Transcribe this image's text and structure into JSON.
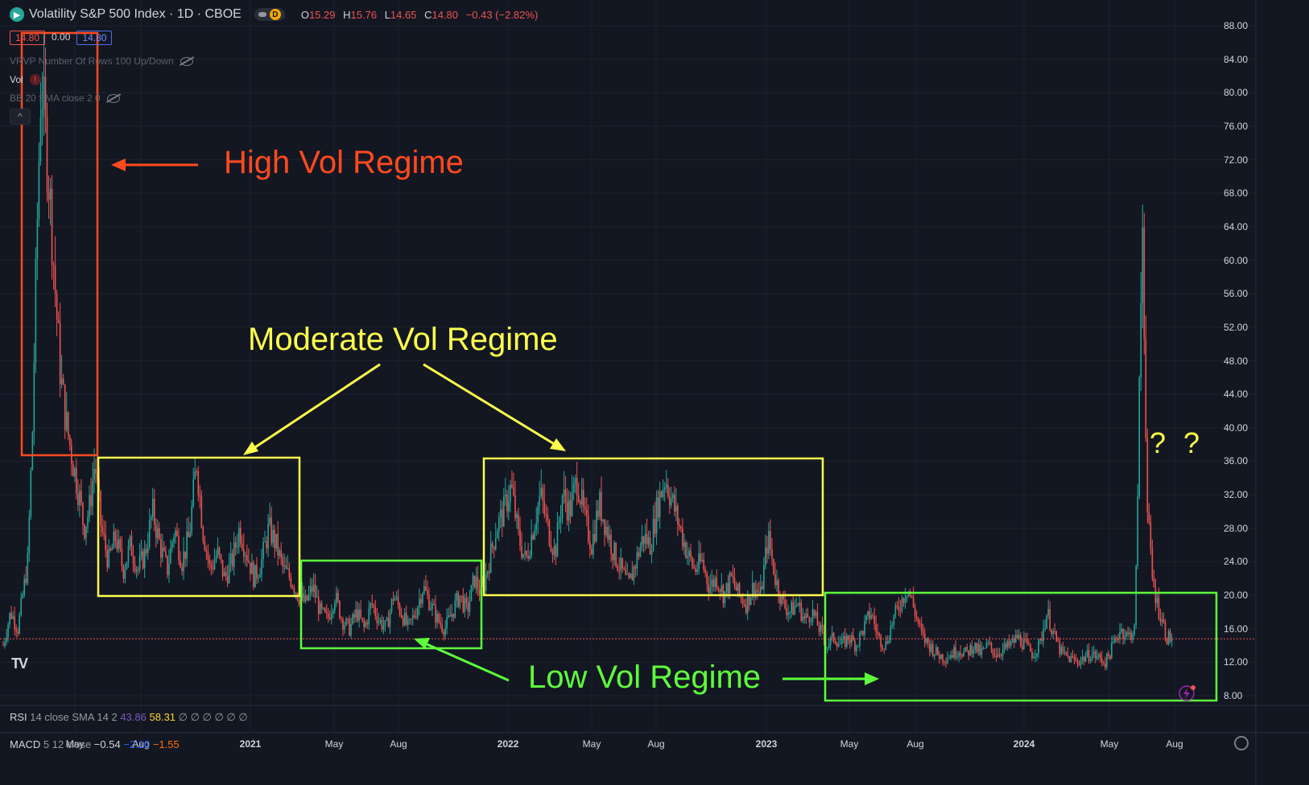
{
  "header": {
    "logo_icon": "tradingview-symbol-logo",
    "title": "Volatility S&P 500 Index · 1D · CBOE",
    "toggle_badge": "D",
    "ohlc": {
      "o_label": "O",
      "o_value": "15.29",
      "h_label": "H",
      "h_value": "15.76",
      "l_label": "L",
      "l_value": "14.65",
      "c_label": "C",
      "c_value": "14.80",
      "change": "−0.43 (−2.82%)"
    }
  },
  "price_tags": {
    "bid": "14.80",
    "spread": "0.00",
    "ask": "14.80"
  },
  "indicators": {
    "vrvp": "VRVP Number Of Rows 100 Up/Down",
    "vol": "Vol",
    "bb": "BB 20 SMA close 2 0",
    "collapse_glyph": "^"
  },
  "panes": {
    "rsi_label": "RSI",
    "rsi_params": "14 close SMA 14 2",
    "rsi_value1": "43.86",
    "rsi_value2": "58.31",
    "rsi_na": "∅ ∅ ∅ ∅ ∅ ∅",
    "macd_label": "MACD",
    "macd_params": "5 12 close",
    "macd_value1": "−0.54",
    "macd_value2": "−2.10",
    "macd_value3": "−1.55"
  },
  "annotations": {
    "high": "High Vol Regime",
    "moderate": "Moderate Vol Regime",
    "low": "Low Vol Regime",
    "question": "? ?"
  },
  "colors": {
    "background": "#131722",
    "up": "#26a69a",
    "down": "#ef5350",
    "high_regime": "#ff4a1f",
    "moderate_regime": "#ffff4d",
    "low_regime": "#5dff3d"
  },
  "chart_data": {
    "type": "candlestick",
    "symbol": "Volatility S&P 500 Index",
    "interval": "1D",
    "exchange": "CBOE",
    "y_ticks": [
      "88.00",
      "84.00",
      "80.00",
      "76.00",
      "72.00",
      "68.00",
      "64.00",
      "60.00",
      "56.00",
      "52.00",
      "48.00",
      "44.00",
      "40.00",
      "36.00",
      "32.00",
      "28.00",
      "24.00",
      "20.00",
      "16.00",
      "12.00",
      "8.00"
    ],
    "x_ticks": [
      {
        "label": "May",
        "year": false
      },
      {
        "label": "Aug",
        "year": false
      },
      {
        "label": "2021",
        "year": true
      },
      {
        "label": "May",
        "year": false
      },
      {
        "label": "Aug",
        "year": false
      },
      {
        "label": "2022",
        "year": true
      },
      {
        "label": "May",
        "year": false
      },
      {
        "label": "Aug",
        "year": false
      },
      {
        "label": "2023",
        "year": true
      },
      {
        "label": "May",
        "year": false
      },
      {
        "label": "Aug",
        "year": false
      },
      {
        "label": "2024",
        "year": true
      },
      {
        "label": "May",
        "year": false
      },
      {
        "label": "Aug",
        "year": false
      }
    ],
    "ylim": [
      8,
      88
    ],
    "last_price": 14.8,
    "close_series": [
      {
        "t": 0.0,
        "v": 14
      },
      {
        "t": 0.006,
        "v": 18
      },
      {
        "t": 0.012,
        "v": 16
      },
      {
        "t": 0.02,
        "v": 24
      },
      {
        "t": 0.024,
        "v": 40
      },
      {
        "t": 0.027,
        "v": 60
      },
      {
        "t": 0.031,
        "v": 82
      },
      {
        "t": 0.034,
        "v": 76
      },
      {
        "t": 0.038,
        "v": 68
      },
      {
        "t": 0.043,
        "v": 55
      },
      {
        "t": 0.047,
        "v": 46
      },
      {
        "t": 0.052,
        "v": 40
      },
      {
        "t": 0.058,
        "v": 35
      },
      {
        "t": 0.062,
        "v": 32
      },
      {
        "t": 0.066,
        "v": 28
      },
      {
        "t": 0.07,
        "v": 30
      },
      {
        "t": 0.075,
        "v": 36
      },
      {
        "t": 0.08,
        "v": 28
      },
      {
        "t": 0.086,
        "v": 24
      },
      {
        "t": 0.092,
        "v": 27
      },
      {
        "t": 0.098,
        "v": 23
      },
      {
        "t": 0.104,
        "v": 26
      },
      {
        "t": 0.11,
        "v": 23
      },
      {
        "t": 0.116,
        "v": 25
      },
      {
        "t": 0.122,
        "v": 30
      },
      {
        "t": 0.128,
        "v": 26
      },
      {
        "t": 0.134,
        "v": 23
      },
      {
        "t": 0.14,
        "v": 28
      },
      {
        "t": 0.146,
        "v": 24
      },
      {
        "t": 0.152,
        "v": 27
      },
      {
        "t": 0.158,
        "v": 36
      },
      {
        "t": 0.163,
        "v": 28
      },
      {
        "t": 0.169,
        "v": 23
      },
      {
        "t": 0.175,
        "v": 25
      },
      {
        "t": 0.181,
        "v": 22
      },
      {
        "t": 0.187,
        "v": 24
      },
      {
        "t": 0.193,
        "v": 28
      },
      {
        "t": 0.199,
        "v": 25
      },
      {
        "t": 0.205,
        "v": 22
      },
      {
        "t": 0.211,
        "v": 24
      },
      {
        "t": 0.217,
        "v": 28
      },
      {
        "t": 0.223,
        "v": 26
      },
      {
        "t": 0.229,
        "v": 23
      },
      {
        "t": 0.235,
        "v": 22
      },
      {
        "t": 0.241,
        "v": 20
      },
      {
        "t": 0.247,
        "v": 19
      },
      {
        "t": 0.253,
        "v": 21
      },
      {
        "t": 0.259,
        "v": 18
      },
      {
        "t": 0.265,
        "v": 17
      },
      {
        "t": 0.271,
        "v": 20
      },
      {
        "t": 0.277,
        "v": 17
      },
      {
        "t": 0.283,
        "v": 16
      },
      {
        "t": 0.289,
        "v": 18
      },
      {
        "t": 0.295,
        "v": 16
      },
      {
        "t": 0.301,
        "v": 19
      },
      {
        "t": 0.307,
        "v": 17
      },
      {
        "t": 0.313,
        "v": 16
      },
      {
        "t": 0.319,
        "v": 20
      },
      {
        "t": 0.325,
        "v": 18
      },
      {
        "t": 0.331,
        "v": 16
      },
      {
        "t": 0.337,
        "v": 18
      },
      {
        "t": 0.343,
        "v": 21
      },
      {
        "t": 0.349,
        "v": 19
      },
      {
        "t": 0.355,
        "v": 17
      },
      {
        "t": 0.361,
        "v": 16
      },
      {
        "t": 0.367,
        "v": 18
      },
      {
        "t": 0.373,
        "v": 20
      },
      {
        "t": 0.379,
        "v": 18
      },
      {
        "t": 0.385,
        "v": 22
      },
      {
        "t": 0.391,
        "v": 20
      },
      {
        "t": 0.397,
        "v": 24
      },
      {
        "t": 0.403,
        "v": 28
      },
      {
        "t": 0.409,
        "v": 30
      },
      {
        "t": 0.415,
        "v": 33
      },
      {
        "t": 0.421,
        "v": 27
      },
      {
        "t": 0.427,
        "v": 24
      },
      {
        "t": 0.433,
        "v": 28
      },
      {
        "t": 0.439,
        "v": 32
      },
      {
        "t": 0.445,
        "v": 28
      },
      {
        "t": 0.451,
        "v": 25
      },
      {
        "t": 0.457,
        "v": 32
      },
      {
        "t": 0.463,
        "v": 30
      },
      {
        "t": 0.469,
        "v": 34
      },
      {
        "t": 0.475,
        "v": 29
      },
      {
        "t": 0.481,
        "v": 26
      },
      {
        "t": 0.487,
        "v": 31
      },
      {
        "t": 0.493,
        "v": 28
      },
      {
        "t": 0.499,
        "v": 25
      },
      {
        "t": 0.505,
        "v": 23
      },
      {
        "t": 0.511,
        "v": 21
      },
      {
        "t": 0.517,
        "v": 24
      },
      {
        "t": 0.523,
        "v": 27
      },
      {
        "t": 0.529,
        "v": 26
      },
      {
        "t": 0.535,
        "v": 31
      },
      {
        "t": 0.541,
        "v": 34
      },
      {
        "t": 0.547,
        "v": 31
      },
      {
        "t": 0.553,
        "v": 28
      },
      {
        "t": 0.559,
        "v": 25
      },
      {
        "t": 0.565,
        "v": 23
      },
      {
        "t": 0.571,
        "v": 24
      },
      {
        "t": 0.577,
        "v": 21
      },
      {
        "t": 0.583,
        "v": 22
      },
      {
        "t": 0.589,
        "v": 20
      },
      {
        "t": 0.595,
        "v": 22
      },
      {
        "t": 0.601,
        "v": 20
      },
      {
        "t": 0.607,
        "v": 19
      },
      {
        "t": 0.613,
        "v": 21
      },
      {
        "t": 0.619,
        "v": 20
      },
      {
        "t": 0.625,
        "v": 27
      },
      {
        "t": 0.631,
        "v": 22
      },
      {
        "t": 0.637,
        "v": 19
      },
      {
        "t": 0.643,
        "v": 18
      },
      {
        "t": 0.649,
        "v": 19
      },
      {
        "t": 0.655,
        "v": 17
      },
      {
        "t": 0.661,
        "v": 18
      },
      {
        "t": 0.667,
        "v": 16
      },
      {
        "t": 0.673,
        "v": 14
      },
      {
        "t": 0.679,
        "v": 15
      },
      {
        "t": 0.685,
        "v": 14
      },
      {
        "t": 0.691,
        "v": 15
      },
      {
        "t": 0.697,
        "v": 14
      },
      {
        "t": 0.703,
        "v": 16
      },
      {
        "t": 0.709,
        "v": 18
      },
      {
        "t": 0.715,
        "v": 15
      },
      {
        "t": 0.721,
        "v": 14
      },
      {
        "t": 0.727,
        "v": 17
      },
      {
        "t": 0.733,
        "v": 19
      },
      {
        "t": 0.739,
        "v": 21
      },
      {
        "t": 0.745,
        "v": 18
      },
      {
        "t": 0.751,
        "v": 15
      },
      {
        "t": 0.757,
        "v": 14
      },
      {
        "t": 0.763,
        "v": 13
      },
      {
        "t": 0.769,
        "v": 12.5
      },
      {
        "t": 0.775,
        "v": 13
      },
      {
        "t": 0.781,
        "v": 13.5
      },
      {
        "t": 0.787,
        "v": 13
      },
      {
        "t": 0.793,
        "v": 14
      },
      {
        "t": 0.799,
        "v": 13
      },
      {
        "t": 0.805,
        "v": 14
      },
      {
        "t": 0.811,
        "v": 13
      },
      {
        "t": 0.817,
        "v": 13.5
      },
      {
        "t": 0.823,
        "v": 14
      },
      {
        "t": 0.829,
        "v": 15
      },
      {
        "t": 0.835,
        "v": 14
      },
      {
        "t": 0.841,
        "v": 13
      },
      {
        "t": 0.847,
        "v": 14
      },
      {
        "t": 0.853,
        "v": 18
      },
      {
        "t": 0.859,
        "v": 15
      },
      {
        "t": 0.865,
        "v": 13
      },
      {
        "t": 0.871,
        "v": 12.5
      },
      {
        "t": 0.877,
        "v": 12
      },
      {
        "t": 0.883,
        "v": 12.5
      },
      {
        "t": 0.889,
        "v": 13
      },
      {
        "t": 0.895,
        "v": 12.5
      },
      {
        "t": 0.901,
        "v": 12
      },
      {
        "t": 0.907,
        "v": 14
      },
      {
        "t": 0.913,
        "v": 16
      },
      {
        "t": 0.919,
        "v": 15
      },
      {
        "t": 0.925,
        "v": 16
      },
      {
        "t": 0.931,
        "v": 65
      },
      {
        "t": 0.935,
        "v": 30
      },
      {
        "t": 0.939,
        "v": 22
      },
      {
        "t": 0.943,
        "v": 19
      },
      {
        "t": 0.947,
        "v": 17
      },
      {
        "t": 0.951,
        "v": 15
      },
      {
        "t": 0.955,
        "v": 14.8
      }
    ]
  }
}
